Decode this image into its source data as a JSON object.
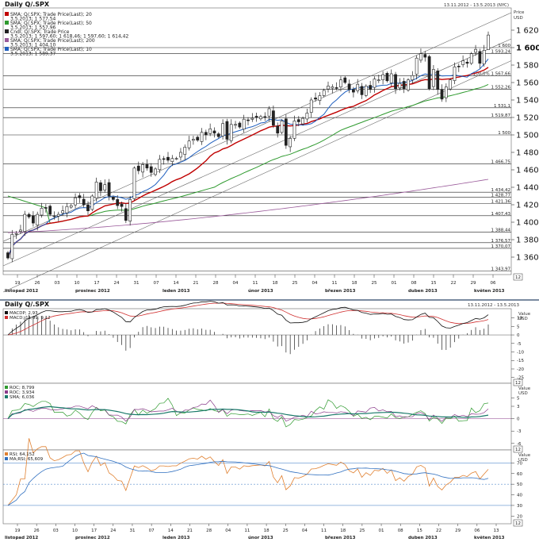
{
  "header": {
    "title": "Daily Q/.SPX",
    "date_range": "13.11.2012 - 13.5.2013 (NYC)",
    "price_label": "Price",
    "currency": "USD"
  },
  "legend": [
    {
      "name": "SMA; Q/.SPX; Trade Price(Last); 20",
      "value": "3.5.2013; 1 577,54",
      "color": "#c00000"
    },
    {
      "name": "SMA; Q/.SPX; Trade Price(Last); 50",
      "value": "3.5.2013; 1 557,96",
      "color": "#2e9a2e"
    },
    {
      "name": "Cndl; Q/.SPX; Trade Price",
      "value": "3.5.2013; 1 597,60; 1 618,46; 1 597,60; 1 614,42",
      "color": "#222222"
    },
    {
      "name": "SMA; Q/.SPX; Trade Price(Last); 200",
      "value": "3.5.2013; 1 404,10",
      "color": "#9a5a9a"
    },
    {
      "name": "SMA; Q/.SPX; Trade Price(Last); 10",
      "value": "3.5.2013; 1 589,37",
      "color": "#1f5fbf"
    }
  ],
  "x_labels": {
    "days": [
      "19",
      "26",
      "03",
      "10",
      "17",
      "24",
      "31",
      "07",
      "14",
      "21",
      "28",
      "04",
      "11",
      "18",
      "25",
      "04",
      "11",
      "18",
      "25",
      "01",
      "08",
      "15",
      "22",
      "29",
      "06"
    ],
    "months": [
      "listopad 2012",
      "prosinec 2012",
      "leden 2013",
      "únor 2013",
      "březen 2013",
      "duben 2013",
      "květen 2013"
    ]
  },
  "price_axis": [
    "1 620",
    "1 600",
    "1 580",
    "1 560",
    "1 540",
    "1 520",
    "1 500",
    "1 480",
    "1 460",
    "1 440",
    "1 420",
    "1 400",
    "1 380",
    "1 360"
  ],
  "levels": [
    {
      "label": "1 600",
      "value": 1600
    },
    {
      "label": "1 593,24",
      "value": 1593.24
    },
    {
      "label": "100,0% 1 567,66",
      "value": 1567.66
    },
    {
      "label": "1 552,26",
      "value": 1552.26
    },
    {
      "label": "1 531,1",
      "value": 1531.1
    },
    {
      "label": "1 519,87",
      "value": 1519.87
    },
    {
      "label": "1 500",
      "value": 1500
    },
    {
      "label": "1 466,75",
      "value": 1466.75
    },
    {
      "label": "1 434,42",
      "value": 1434.42
    },
    {
      "label": "1 428,77",
      "value": 1428.77
    },
    {
      "label": "1 421,36",
      "value": 1421.36
    },
    {
      "label": "1 407,43",
      "value": 1407.43
    },
    {
      "label": "1 388,44",
      "value": 1388.44
    },
    {
      "label": "1 376,57",
      "value": 1376.57
    },
    {
      "label": "1 370,07",
      "value": 1370.07
    },
    {
      "label": "1 343,97",
      "value": 1343.97
    }
  ],
  "scale_badge": "12",
  "macd_panel": {
    "title": "Daily Q/.SPX",
    "date_range": "13.11.2012 - 13.5.2013",
    "legend": [
      {
        "name": "MACDP; 2,93",
        "color": "#111111"
      },
      {
        "name": "MACD; 11,99; 9,12",
        "color": "#d03030"
      }
    ],
    "value_label": "Value",
    "currency": "USD",
    "ticks": [
      "10",
      "5",
      "0",
      "-5",
      "-10",
      "-15",
      "-20",
      "-25"
    ],
    "badge": "12"
  },
  "roc_panel": {
    "legend": [
      {
        "name": "ROC; 8,799",
        "color": "#2e9a2e"
      },
      {
        "name": "ROC; 3,934",
        "color": "#8a3a8a"
      },
      {
        "name": "SMA; 6,036",
        "color": "#1a7a6a"
      }
    ],
    "value_label": "Value",
    "currency": "USD",
    "ticks": [
      "5",
      "3",
      "0",
      "-3",
      "-6"
    ],
    "badge": "12"
  },
  "rsi_panel": {
    "legend": [
      {
        "name": "RSI; 64,152",
        "color": "#e08030"
      },
      {
        "name": "MA;RSI; 65,609",
        "color": "#3070c0"
      }
    ],
    "value_label": "Value",
    "currency": "USD",
    "ticks": [
      "70",
      "60",
      "50",
      "40",
      "30",
      "20"
    ],
    "badge": "12"
  },
  "bottom_days": [
    "19",
    "26",
    "03",
    "10",
    "17",
    "24",
    "31",
    "07",
    "14",
    "21",
    "28",
    "04",
    "11",
    "18",
    "25",
    "04",
    "11",
    "18",
    "25",
    "01",
    "08",
    "15",
    "22",
    "29",
    "06",
    "13"
  ],
  "chart_data": {
    "type": "candlestick",
    "title": "Daily Q/.SPX",
    "ylabel": "Price USD",
    "ylim": [
      1340,
      1640
    ],
    "grid": false,
    "x": [
      "2012-11-16",
      "2012-11-19",
      "2012-11-20",
      "2012-11-21",
      "2012-11-23",
      "2012-11-26",
      "2012-11-27",
      "2012-11-28",
      "2012-11-29",
      "2012-11-30",
      "2012-12-03",
      "2012-12-04",
      "2012-12-05",
      "2012-12-06",
      "2012-12-07",
      "2012-12-10",
      "2012-12-11",
      "2012-12-12",
      "2012-12-13",
      "2012-12-14",
      "2012-12-17",
      "2012-12-18",
      "2012-12-19",
      "2012-12-20",
      "2012-12-21",
      "2012-12-24",
      "2012-12-26",
      "2012-12-27",
      "2012-12-28",
      "2012-12-31",
      "2013-01-02",
      "2013-01-03",
      "2013-01-04",
      "2013-01-07",
      "2013-01-08",
      "2013-01-09",
      "2013-01-10",
      "2013-01-11",
      "2013-01-14",
      "2013-01-15",
      "2013-01-16",
      "2013-01-17",
      "2013-01-18",
      "2013-01-22",
      "2013-01-23",
      "2013-01-24",
      "2013-01-25",
      "2013-01-28",
      "2013-01-29",
      "2013-01-30",
      "2013-01-31",
      "2013-02-01",
      "2013-02-04",
      "2013-02-05",
      "2013-02-06",
      "2013-02-07",
      "2013-02-08",
      "2013-02-11",
      "2013-02-12",
      "2013-02-13",
      "2013-02-14",
      "2013-02-15",
      "2013-02-19",
      "2013-02-20",
      "2013-02-21",
      "2013-02-22",
      "2013-02-25",
      "2013-02-26",
      "2013-02-27",
      "2013-02-28",
      "2013-03-01",
      "2013-03-04",
      "2013-03-05",
      "2013-03-06",
      "2013-03-07",
      "2013-03-08",
      "2013-03-11",
      "2013-03-12",
      "2013-03-13",
      "2013-03-14",
      "2013-03-15",
      "2013-03-18",
      "2013-03-19",
      "2013-03-20",
      "2013-03-21",
      "2013-03-22",
      "2013-03-25",
      "2013-03-26",
      "2013-03-27",
      "2013-03-28",
      "2013-04-01",
      "2013-04-02",
      "2013-04-03",
      "2013-04-04",
      "2013-04-05",
      "2013-04-08",
      "2013-04-09",
      "2013-04-10",
      "2013-04-11",
      "2013-04-12",
      "2013-04-15",
      "2013-04-16",
      "2013-04-17",
      "2013-04-18",
      "2013-04-19",
      "2013-04-22",
      "2013-04-23",
      "2013-04-24",
      "2013-04-25",
      "2013-04-26",
      "2013-04-29",
      "2013-04-30",
      "2013-05-01",
      "2013-05-02",
      "2013-05-03"
    ],
    "series": [
      {
        "name": "Cndl; Q/.SPX; Trade Price",
        "close": [
          1359,
          1386,
          1387,
          1391,
          1409,
          1406,
          1399,
          1409,
          1416,
          1416,
          1409,
          1407,
          1409,
          1413,
          1418,
          1419,
          1428,
          1428,
          1420,
          1413,
          1430,
          1446,
          1436,
          1443,
          1430,
          1426,
          1419,
          1418,
          1402,
          1426,
          1462,
          1459,
          1466,
          1462,
          1457,
          1461,
          1472,
          1472,
          1471,
          1473,
          1473,
          1480,
          1486,
          1493,
          1495,
          1494,
          1503,
          1500,
          1507,
          1502,
          1498,
          1513,
          1495,
          1512,
          1512,
          1509,
          1518,
          1517,
          1519,
          1520,
          1521,
          1520,
          1530,
          1511,
          1502,
          1516,
          1488,
          1496,
          1516,
          1515,
          1519,
          1525,
          1540,
          1541,
          1545,
          1551,
          1556,
          1555,
          1554,
          1563,
          1560,
          1552,
          1549,
          1558,
          1546,
          1556,
          1552,
          1564,
          1563,
          1569,
          1562,
          1570,
          1553,
          1559,
          1553,
          1563,
          1568,
          1588,
          1593,
          1589,
          1553,
          1575,
          1552,
          1541,
          1555,
          1563,
          1578,
          1578,
          1585,
          1582,
          1593,
          1598,
          1582,
          1597,
          1614
        ]
      },
      {
        "name": "SMA; Q/.SPX; Trade Price(Last); 10",
        "last": 1589.37
      },
      {
        "name": "SMA; Q/.SPX; Trade Price(Last); 20",
        "last": 1577.54
      },
      {
        "name": "SMA; Q/.SPX; Trade Price(Last); 50",
        "last": 1557.96
      },
      {
        "name": "SMA; Q/.SPX; Trade Price(Last); 200",
        "last": 1404.1
      }
    ],
    "last_candle": {
      "open": 1597.6,
      "high": 1618.46,
      "low": 1597.6,
      "close": 1614.42
    }
  }
}
